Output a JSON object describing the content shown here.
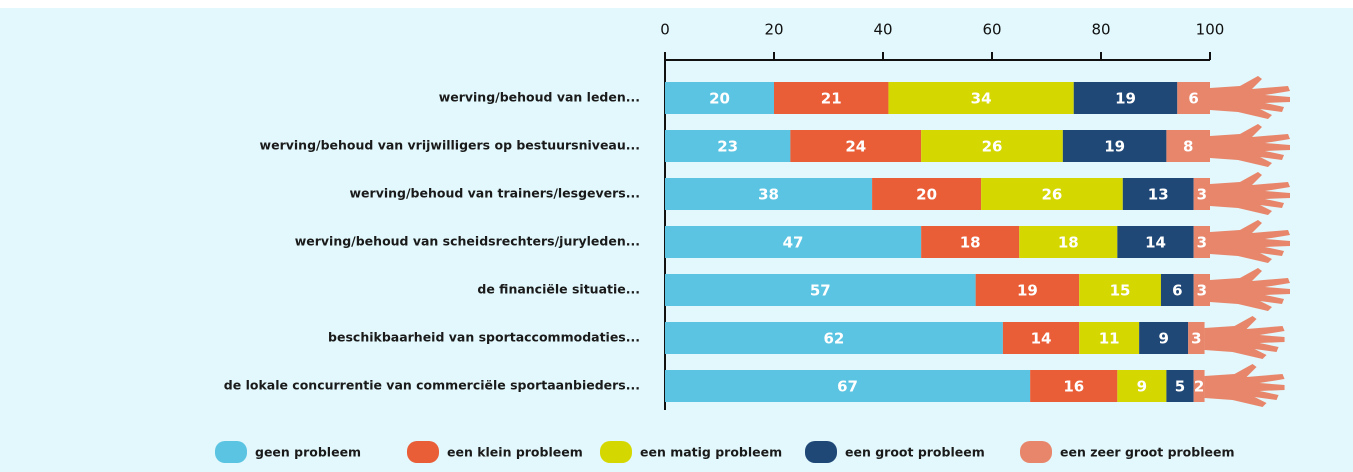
{
  "chart_data": {
    "type": "stacked-bar-horizontal",
    "categories": [
      "werving/behoud van leden...",
      "werving/behoud van vrijwilligers op bestuursniveau...",
      "werving/behoud van trainers/lesgevers...",
      "werving/behoud van scheidsrechters/juryleden...",
      "de financiële situatie...",
      "beschikbaarheid van sportaccommodaties...",
      "de lokale concurrentie van commerciële sportaanbieders..."
    ],
    "series": [
      {
        "name": "geen probleem",
        "color": "#5bc4e2",
        "values": [
          20,
          23,
          38,
          47,
          57,
          62,
          67
        ]
      },
      {
        "name": "een klein probleem",
        "color": "#e95d37",
        "values": [
          21,
          24,
          20,
          18,
          19,
          14,
          16
        ]
      },
      {
        "name": "een matig probleem",
        "color": "#d5d800",
        "values": [
          34,
          26,
          26,
          18,
          15,
          11,
          9
        ]
      },
      {
        "name": "een groot probleem",
        "color": "#1f4877",
        "values": [
          19,
          19,
          13,
          14,
          6,
          9,
          5
        ]
      },
      {
        "name": "een zeer groot probleem",
        "color": "#e8866b",
        "values": [
          6,
          8,
          3,
          3,
          3,
          3,
          2
        ]
      }
    ],
    "xlim": [
      0,
      100
    ],
    "xticks": [
      0,
      20,
      40,
      60,
      80,
      100
    ]
  }
}
